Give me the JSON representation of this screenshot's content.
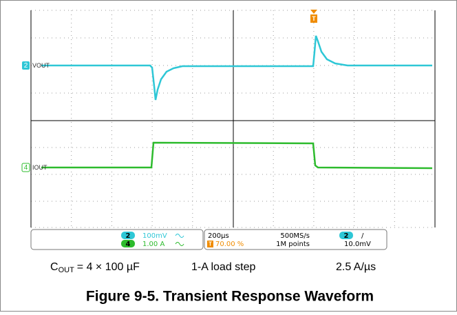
{
  "scope": {
    "channels": [
      {
        "id": "2",
        "label": "VOUT"
      },
      {
        "id": "4",
        "label": "IOUT"
      }
    ],
    "trigger_marker": "T",
    "readout": {
      "ch2": {
        "id": "2",
        "scale": "100mV"
      },
      "ch4": {
        "id": "4",
        "scale": "1.00 A"
      },
      "timebase": "200µs",
      "trigger_position": "70.00 %",
      "sample_rate": "500MS/s",
      "record_length": "1M points",
      "trigger_source": "2",
      "trigger_slope": "/",
      "trigger_level": "10.0mV"
    }
  },
  "conditions": {
    "cout": {
      "symbol": "C",
      "subscript": "OUT",
      "text": "= 4 × 100 µF"
    },
    "load_step": "1-A load step",
    "slew_rate": "2.5 A/µs"
  },
  "caption": "Figure 9-5. Transient Response Waveform"
}
